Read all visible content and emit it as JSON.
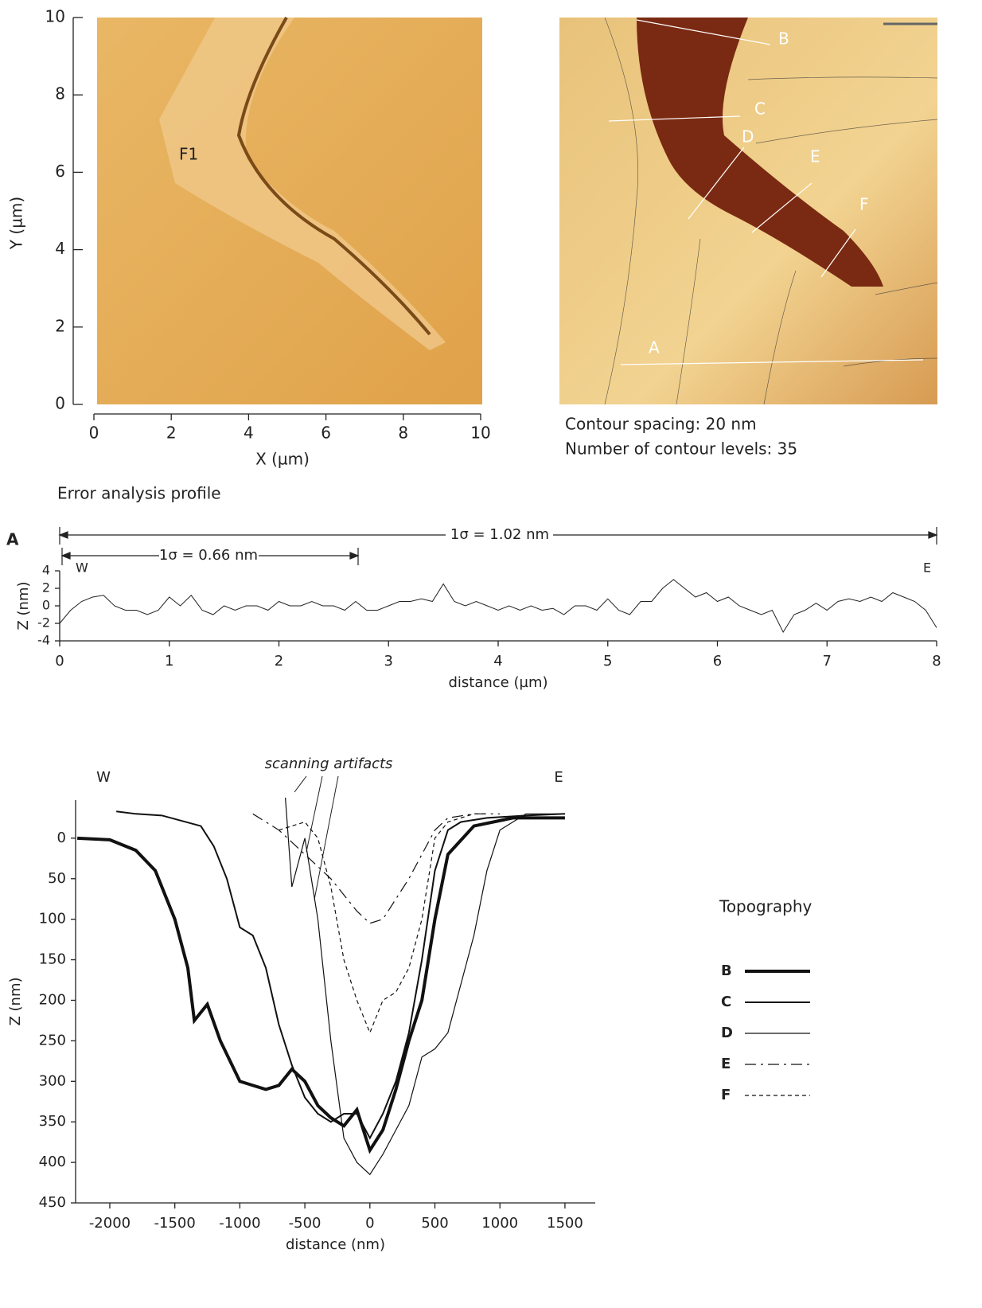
{
  "chart_data": [
    {
      "type": "image",
      "xlabel": "X (µm)",
      "ylabel": "Y (µm)",
      "xlim": [
        0,
        10
      ],
      "ylim": [
        0,
        10
      ],
      "xticks": [
        0,
        2,
        4,
        6,
        8,
        10
      ],
      "yticks": [
        0,
        2,
        4,
        6,
        8,
        10
      ],
      "annotations": [
        "F1"
      ]
    },
    {
      "type": "contour",
      "line_labels": [
        "A",
        "B",
        "C",
        "D",
        "E",
        "F"
      ],
      "notes": [
        "Contour spacing: 20 nm",
        "Number of contour levels: 35"
      ]
    },
    {
      "type": "line",
      "title": "Error analysis profile",
      "panel_label": "A",
      "annotations": [
        "W",
        "E",
        "1σ = 1.02 nm",
        "1σ = 0.66 nm"
      ],
      "xlabel": "distance (µm)",
      "ylabel": "Z (nm)",
      "xlim": [
        0,
        8
      ],
      "ylim": [
        -4,
        4
      ],
      "xticks": [
        0,
        1,
        2,
        3,
        4,
        5,
        6,
        7,
        8
      ],
      "yticks": [
        -4,
        -2,
        0,
        2,
        4
      ],
      "x": [
        0,
        0.1,
        0.2,
        0.3,
        0.4,
        0.5,
        0.6,
        0.7,
        0.8,
        0.9,
        1,
        1.1,
        1.2,
        1.3,
        1.4,
        1.5,
        1.6,
        1.7,
        1.8,
        1.9,
        2,
        2.1,
        2.2,
        2.3,
        2.4,
        2.5,
        2.6,
        2.7,
        2.8,
        2.9,
        3,
        3.1,
        3.2,
        3.3,
        3.4,
        3.5,
        3.6,
        3.7,
        3.8,
        3.9,
        4,
        4.1,
        4.2,
        4.3,
        4.4,
        4.5,
        4.6,
        4.7,
        4.8,
        4.9,
        5,
        5.1,
        5.2,
        5.3,
        5.4,
        5.5,
        5.6,
        5.7,
        5.8,
        5.9,
        6,
        6.1,
        6.2,
        6.3,
        6.4,
        6.5,
        6.6,
        6.7,
        6.8,
        6.9,
        7,
        7.1,
        7.2,
        7.3,
        7.4,
        7.5,
        7.6,
        7.7,
        7.8,
        7.9,
        8
      ],
      "series": [
        {
          "color": "#222222",
          "values": [
            -2,
            -0.5,
            0.5,
            1,
            1.2,
            0,
            -0.5,
            -0.5,
            -1,
            -0.5,
            1,
            0,
            1.2,
            -0.5,
            -1,
            0,
            -0.5,
            0,
            0,
            -0.5,
            0.5,
            0,
            0,
            0.5,
            0,
            0,
            -0.5,
            0.5,
            -0.5,
            -0.5,
            0,
            0.5,
            0.5,
            0.8,
            0.5,
            2.5,
            0.5,
            0,
            0.5,
            0,
            -0.5,
            0,
            -0.5,
            0,
            -0.5,
            -0.3,
            -1,
            0,
            0,
            -0.5,
            0.8,
            -0.5,
            -1,
            0.5,
            0.5,
            2,
            3,
            2,
            1,
            1.5,
            0.5,
            1,
            0,
            -0.5,
            -1,
            -0.5,
            -3,
            -1,
            -0.5,
            0.3,
            -0.5,
            0.5,
            0.8,
            0.5,
            1,
            0.5,
            1.5,
            1,
            0.5,
            -0.5,
            -2.5
          ]
        }
      ]
    },
    {
      "type": "line",
      "annotations": [
        "scanning artifacts",
        "W",
        "E"
      ],
      "legend_title": "Topography",
      "xlabel": "distance (nm)",
      "ylabel": "Z (nm)",
      "xlim": [
        -2263,
        1733
      ],
      "ylim": [
        -47,
        450
      ],
      "y_inverted": true,
      "xticks": [
        -2000,
        -1500,
        -1000,
        -500,
        0,
        500,
        1000,
        1500
      ],
      "yticks": [
        0,
        50,
        100,
        150,
        200,
        250,
        300,
        350,
        400,
        450
      ],
      "series": [
        {
          "name": "B",
          "color": "#111111",
          "line_width": 4,
          "dash": "solid",
          "x": [
            -2250,
            -2000,
            -1800,
            -1650,
            -1500,
            -1400,
            -1350,
            -1250,
            -1150,
            -1000,
            -900,
            -800,
            -700,
            -600,
            -500,
            -400,
            -300,
            -200,
            -100,
            0,
            100,
            200,
            300,
            400,
            500,
            600,
            800,
            1100,
            1300,
            1500
          ],
          "values": [
            0,
            2,
            15,
            40,
            100,
            160,
            225,
            205,
            250,
            300,
            305,
            310,
            305,
            285,
            300,
            330,
            345,
            355,
            335,
            385,
            360,
            310,
            250,
            200,
            100,
            20,
            -15,
            -25,
            -25,
            -25
          ]
        },
        {
          "name": "C",
          "color": "#111111",
          "line_width": 2,
          "dash": "solid",
          "x": [
            -1950,
            -1800,
            -1600,
            -1300,
            -1200,
            -1100,
            -1000,
            -900,
            -800,
            -700,
            -600,
            -500,
            -400,
            -300,
            -200,
            -100,
            0,
            100,
            200,
            300,
            400,
            500,
            600,
            700,
            900,
            1200,
            1500
          ],
          "values": [
            -33,
            -30,
            -28,
            -15,
            10,
            50,
            110,
            120,
            160,
            230,
            280,
            320,
            340,
            350,
            340,
            340,
            370,
            340,
            300,
            240,
            150,
            40,
            -10,
            -20,
            -25,
            -28,
            -30
          ]
        },
        {
          "name": "D",
          "color": "#111111",
          "line_width": 1.2,
          "dash": "solid",
          "x": [
            -650,
            -600,
            -500,
            -400,
            -300,
            -200,
            -100,
            0,
            100,
            200,
            300,
            400,
            500,
            600,
            700,
            800,
            900,
            1000,
            1200,
            1500
          ],
          "values": [
            -50,
            60,
            0,
            100,
            250,
            370,
            400,
            415,
            390,
            360,
            330,
            270,
            260,
            240,
            180,
            120,
            40,
            -10,
            -30,
            -30
          ]
        },
        {
          "name": "E",
          "color": "#111111",
          "line_width": 1.2,
          "dash": "long",
          "x": [
            -900,
            -700,
            -500,
            -300,
            -100,
            0,
            100,
            300,
            500,
            600,
            800,
            1000
          ],
          "values": [
            -30,
            -10,
            20,
            50,
            90,
            105,
            100,
            50,
            -10,
            -25,
            -30,
            -30
          ]
        },
        {
          "name": "F",
          "color": "#111111",
          "line_width": 1.2,
          "dash": "short",
          "x": [
            -700,
            -500,
            -400,
            -300,
            -200,
            -100,
            0,
            100,
            200,
            300,
            400,
            500,
            600,
            800,
            900
          ],
          "values": [
            -10,
            -20,
            0,
            60,
            150,
            200,
            240,
            200,
            190,
            160,
            100,
            0,
            -20,
            -30,
            -30
          ]
        }
      ]
    }
  ]
}
